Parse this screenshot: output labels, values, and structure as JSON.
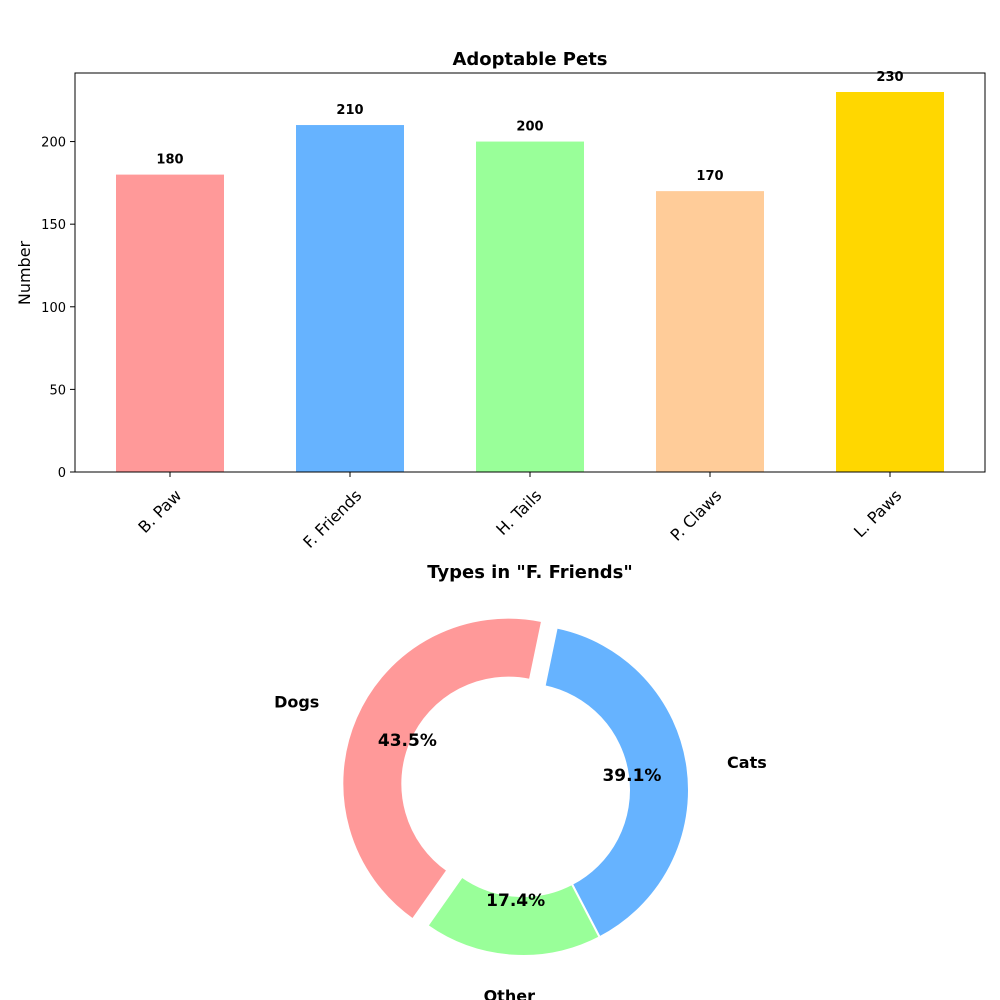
{
  "chart_data": [
    {
      "type": "bar",
      "title": "Adoptable Pets",
      "xlabel": "",
      "ylabel": "Number",
      "categories": [
        "B. Paw",
        "F. Friends",
        "H. Tails",
        "P. Claws",
        "L. Paws"
      ],
      "values": [
        180,
        210,
        200,
        170,
        230
      ],
      "value_labels": [
        "180",
        "210",
        "200",
        "170",
        "230"
      ],
      "colors": [
        "#ff9999",
        "#66b3ff",
        "#99ff99",
        "#ffcc99",
        "#ffd700"
      ],
      "ylim": [
        0,
        241.5
      ],
      "yticks": [
        0,
        50,
        100,
        150,
        200
      ],
      "ytick_labels": [
        "0",
        "50",
        "100",
        "150",
        "200"
      ],
      "grid": false,
      "legend": "none"
    },
    {
      "type": "pie",
      "style": "donut",
      "title": "Types in \"F. Friends\"",
      "labels": [
        "Cats",
        "Dogs",
        "Other"
      ],
      "values": [
        39.1,
        43.5,
        17.4
      ],
      "pct_labels": [
        "39.1%",
        "43.5%",
        "17.4%"
      ],
      "colors": [
        "#66b3ff",
        "#ff9999",
        "#99ff99"
      ],
      "exploded": [
        "Dogs"
      ],
      "legend": "none"
    }
  ]
}
